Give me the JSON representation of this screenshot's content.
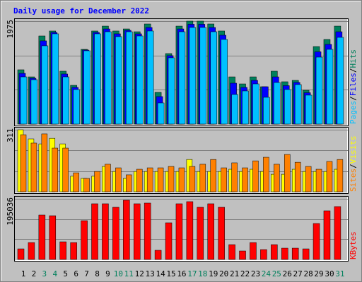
{
  "chart_data": {
    "type": "bar",
    "title": "Daily usage for December 2022",
    "categories": [
      "1",
      "2",
      "3",
      "4",
      "5",
      "6",
      "7",
      "8",
      "9",
      "10",
      "11",
      "12",
      "13",
      "14",
      "15",
      "16",
      "17",
      "18",
      "19",
      "20",
      "21",
      "22",
      "23",
      "24",
      "25",
      "26",
      "27",
      "28",
      "29",
      "30",
      "31"
    ],
    "category_colors": [
      "#000000",
      "#000000",
      "#00805c",
      "#00805c",
      "#000000",
      "#000000",
      "#000000",
      "#000000",
      "#000000",
      "#00805c",
      "#00805c",
      "#000000",
      "#000000",
      "#000000",
      "#000000",
      "#000000",
      "#00805c",
      "#00805c",
      "#000000",
      "#000000",
      "#000000",
      "#000000",
      "#000000",
      "#00805c",
      "#00805c",
      "#000000",
      "#000000",
      "#000000",
      "#000000",
      "#000000",
      "#00805c"
    ],
    "legend_separator": "/",
    "panels": [
      {
        "ylim": [
          0,
          1975
        ],
        "yticks": [
          1975
        ],
        "series": [
          {
            "name": "Hits",
            "color": "#00805c",
            "values": [
              1042,
              906,
              1691,
              1786,
              1015,
              744,
              1434,
              1786,
              1880,
              1786,
              1826,
              1772,
              1921,
              609,
              1353,
              1880,
              1975,
              1975,
              1921,
              1786,
              906,
              771,
              906,
              717,
              1015,
              812,
              839,
              649,
              1488,
              1624,
              1880
            ]
          },
          {
            "name": "Files",
            "color": "#0000ff",
            "values": [
              974,
              879,
              1597,
              1759,
              961,
              704,
              1421,
              1759,
              1826,
              1732,
              1799,
              1732,
              1854,
              528,
              1313,
              1826,
              1915,
              1915,
              1854,
              1705,
              785,
              704,
              839,
              717,
              906,
              738,
              799,
              602,
              1387,
              1529,
              1772
            ]
          },
          {
            "name": "Pages",
            "color": "#00c0ff",
            "values": [
              906,
              852,
              1502,
              1732,
              906,
              663,
              1407,
              1732,
              1772,
              1678,
              1772,
              1691,
              1786,
              406,
              1272,
              1772,
              1854,
              1854,
              1772,
              1624,
              568,
              636,
              771,
              514,
              798,
              663,
              758,
              555,
              1285,
              1434,
              1664
            ]
          }
        ]
      },
      {
        "ylim": [
          0,
          311
        ],
        "yticks": [
          311
        ],
        "series": [
          {
            "name": "Visits",
            "color": "#ffff00",
            "values": [
              311,
              265,
              240,
              268,
              240,
              78,
              67,
              78,
              127,
              102,
              67,
              102,
              102,
              102,
              102,
              102,
              162,
              102,
              102,
              102,
              113,
              102,
              113,
              102,
              88,
              88,
              113,
              102,
              102,
              102,
              113
            ]
          },
          {
            "name": "Sites",
            "color": "#ff8000",
            "values": [
              286,
              244,
              290,
              219,
              219,
              95,
              67,
              102,
              138,
              120,
              85,
              113,
              120,
              120,
              127,
              120,
              127,
              138,
              162,
              120,
              145,
              120,
              155,
              173,
              138,
              187,
              148,
              127,
              113,
              152,
              162
            ]
          }
        ]
      },
      {
        "ylim": [
          0,
          195036
        ],
        "yticks": [
          195036
        ],
        "series": [
          {
            "name": "KBytes",
            "color": "#ff0000",
            "values": [
              34020,
              54432,
              142884,
              140616,
              56700,
              54432,
              124740,
              179172,
              179172,
              167832,
              190512,
              179172,
              181440,
              29484,
              117936,
              179172,
              185976,
              167832,
              179172,
              167832,
              47628,
              27216,
              54432,
              31752,
              47628,
              36288,
              36288,
              34020,
              115668,
              156492,
              170100
            ]
          }
        ]
      }
    ]
  }
}
